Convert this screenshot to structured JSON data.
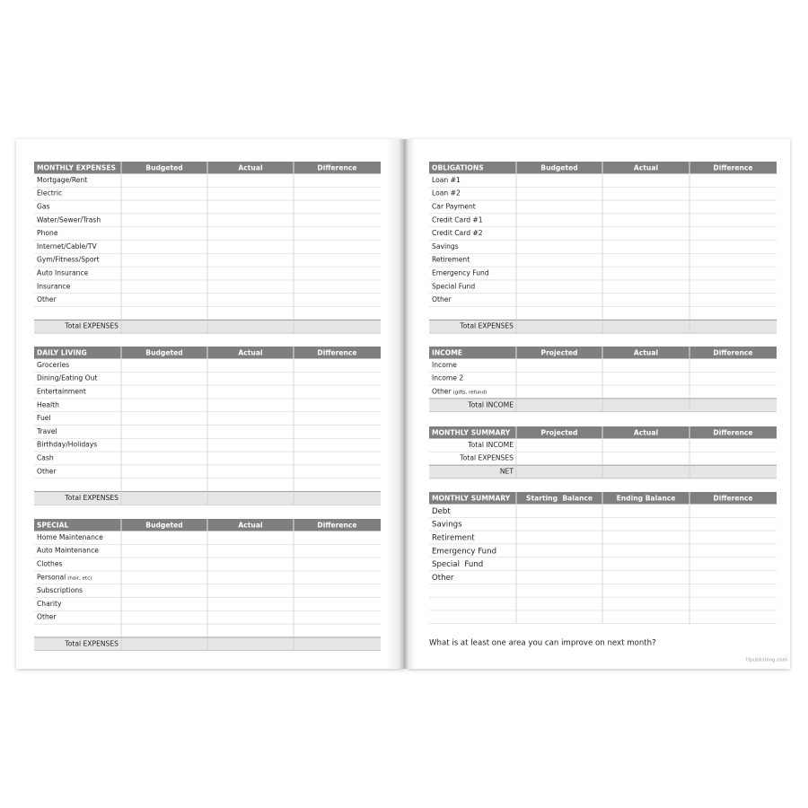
{
  "left_page": {
    "sections": [
      {
        "header": [
          "MONTHLY EXPENSES",
          "Budgeted",
          "Actual",
          "Difference"
        ],
        "rows": [
          {
            "label": "Mortgage/Rent"
          },
          {
            "label": "Electric"
          },
          {
            "label": "Gas"
          },
          {
            "label": "Water/Sewer/Trash"
          },
          {
            "label": "Phone"
          },
          {
            "label": "Internet/Cable/TV"
          },
          {
            "label": "Gym/Fitness/Sport"
          },
          {
            "label": "Auto Insurance"
          },
          {
            "label": "Insurance"
          },
          {
            "label": "Other"
          }
        ],
        "total": "Total EXPENSES"
      },
      {
        "header": [
          "DAILY LIVING",
          "Budgeted",
          "Actual",
          "Difference"
        ],
        "rows": [
          {
            "label": "Groceries"
          },
          {
            "label": "Dining/Eating Out"
          },
          {
            "label": "Entertainment"
          },
          {
            "label": "Health"
          },
          {
            "label": "Fuel"
          },
          {
            "label": "Travel"
          },
          {
            "label": "Birthday/Holidays"
          },
          {
            "label": "Cash"
          },
          {
            "label": "Other"
          }
        ],
        "total": "Total EXPENSES"
      },
      {
        "header": [
          "SPECIAL",
          "Budgeted",
          "Actual",
          "Difference"
        ],
        "rows": [
          {
            "label": "Home Maintenance"
          },
          {
            "label": "Auto Maintenance"
          },
          {
            "label": "Clothes"
          },
          {
            "label": "Personal",
            "note": "(hair, etc)"
          },
          {
            "label": "Subscriptions"
          },
          {
            "label": "Charity"
          },
          {
            "label": "Other"
          }
        ],
        "total": "Total EXPENSES"
      }
    ]
  },
  "right_page": {
    "sections": [
      {
        "header": [
          "OBLIGATIONS",
          "Budgeted",
          "Actual",
          "Difference"
        ],
        "rows": [
          {
            "label": "Loan #1"
          },
          {
            "label": "Loan #2"
          },
          {
            "label": "Car Payment"
          },
          {
            "label": "Credit Card #1"
          },
          {
            "label": "Credit Card #2"
          },
          {
            "label": "Savings"
          },
          {
            "label": "Retirement"
          },
          {
            "label": "Emergency Fund"
          },
          {
            "label": "Special Fund"
          },
          {
            "label": "Other"
          }
        ],
        "total": "Total EXPENSES"
      },
      {
        "header": [
          "INCOME",
          "Projected",
          "Actual",
          "Difference"
        ],
        "rows": [
          {
            "label": "Income"
          },
          {
            "label": "Income 2"
          },
          {
            "label": "Other",
            "note": "(gifts, refund)"
          }
        ],
        "total": "Total INCOME"
      },
      {
        "header": [
          "MONTHLY SUMMARY",
          "Projected",
          "Actual",
          "Difference"
        ],
        "rows": [
          {
            "label": "Total INCOME"
          },
          {
            "label": "Total EXPENSES"
          }
        ],
        "total": "NET"
      },
      {
        "header": [
          "MONTHLY SUMMARY",
          "Starting  Balance",
          "Ending Balance",
          "Difference"
        ],
        "rows": [
          {
            "label": "Debt"
          },
          {
            "label": "Savings"
          },
          {
            "label": "Retirement"
          },
          {
            "label": "Emergency Fund"
          },
          {
            "label": "Special  Fund"
          },
          {
            "label": "Other"
          }
        ]
      }
    ],
    "question": "What is at least one area you can improve on next month?",
    "footer": "tfpublishing.com"
  }
}
